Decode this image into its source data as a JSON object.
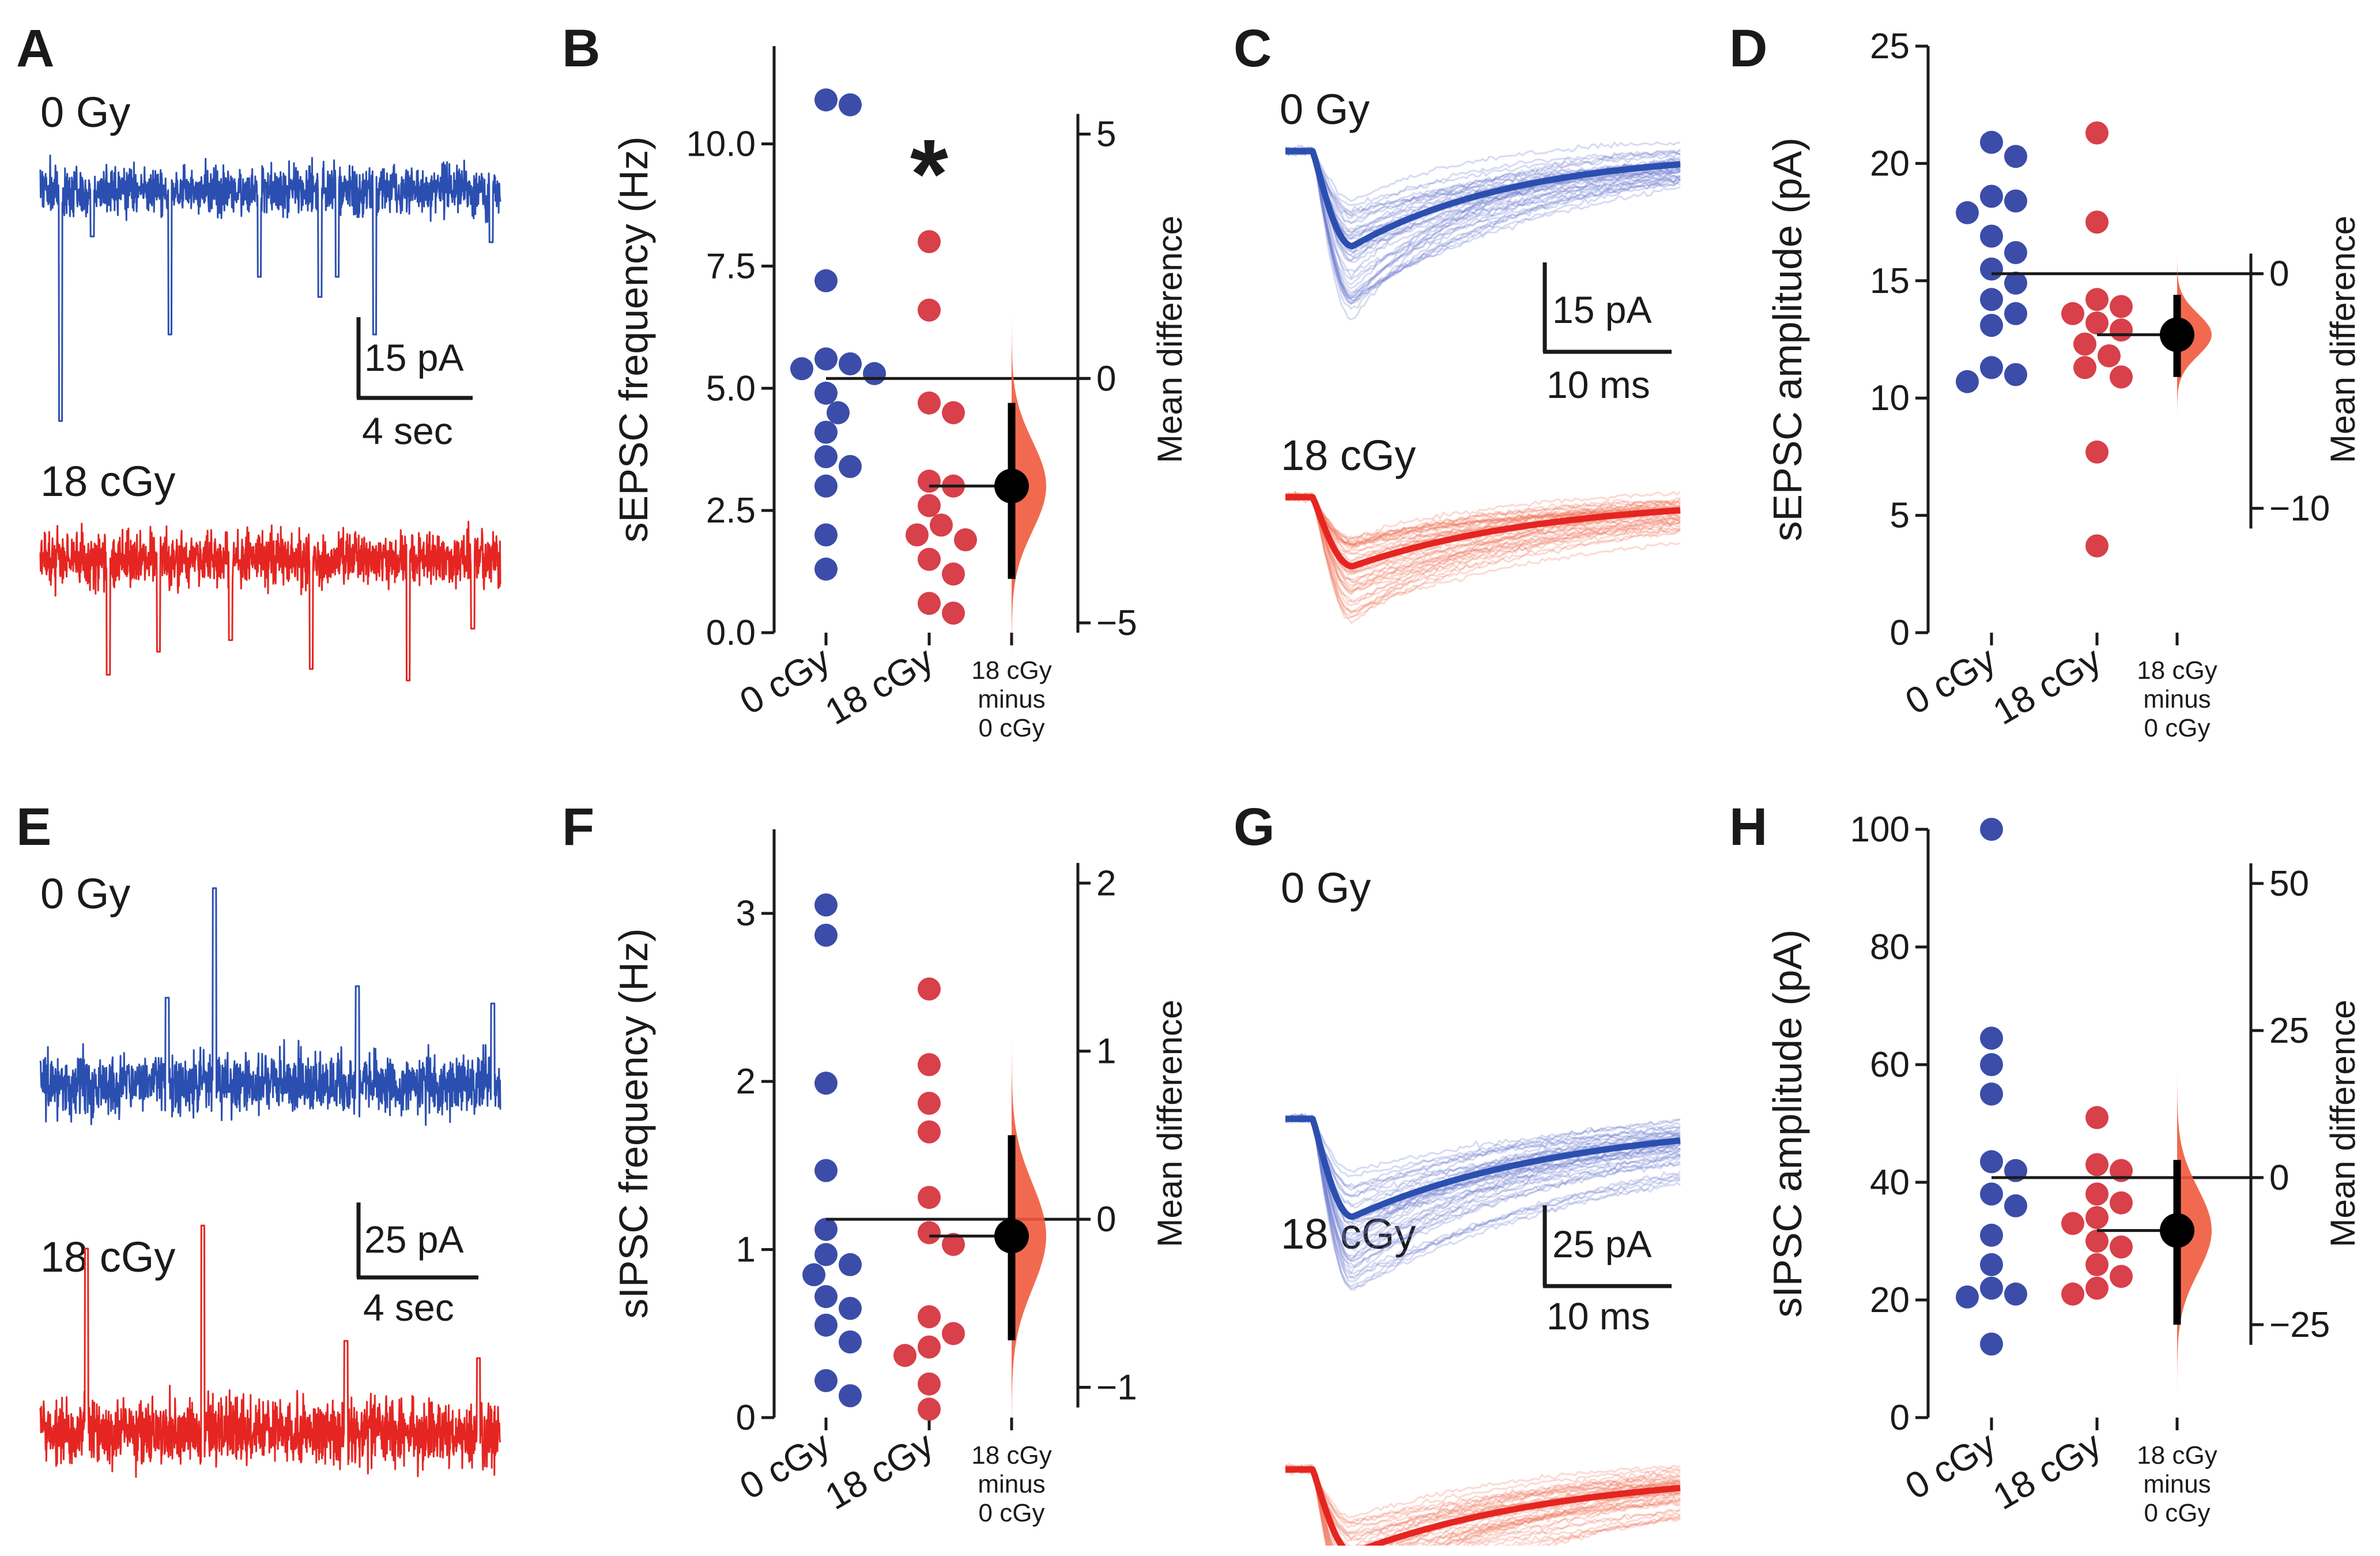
{
  "colors": {
    "control": "#2b4fb0",
    "irradiated": "#e52521",
    "control_dot": "#3b4da8",
    "irradiated_dot": "#d8404a",
    "diff_fill": "#f05a3c",
    "axis": "#1a1a1a"
  },
  "panels": {
    "A": {
      "letter": "A",
      "cond1": "0 Gy",
      "cond2": "18 cGy",
      "scale_y": "15 pA",
      "scale_x": "4 sec"
    },
    "C": {
      "letter": "C",
      "cond1": "0 Gy",
      "cond2": "18 cGy",
      "scale_y": "15 pA",
      "scale_x": "10 ms"
    },
    "E": {
      "letter": "E",
      "cond1": "0 Gy",
      "cond2": "18 cGy",
      "scale_y": "25 pA",
      "scale_x": "4 sec"
    },
    "G": {
      "letter": "G",
      "cond1": "0 Gy",
      "cond2": "18 cGy",
      "scale_y": "25 pA",
      "scale_x": "10 ms"
    }
  },
  "chart_data": [
    {
      "panel": "B",
      "type": "scatter",
      "ylabel": "sEPSC frequency (Hz)",
      "ylim": [
        0,
        12
      ],
      "yticks": [
        "0.0",
        "2.5",
        "5.0",
        "7.5",
        "10.0"
      ],
      "right_label": "Mean difference",
      "right_ticks": [
        "5",
        "0",
        "−5"
      ],
      "right_tick_values": [
        5,
        0,
        -5
      ],
      "categories": [
        "0 cGy",
        "18 cGy"
      ],
      "diff_label": [
        "18 cGy",
        "minus",
        "0 cGy"
      ],
      "annotation": "*",
      "series": [
        {
          "name": "0 cGy",
          "values": [
            10.9,
            10.8,
            7.2,
            5.6,
            5.5,
            5.4,
            5.3,
            4.9,
            4.5,
            4.1,
            3.6,
            3.4,
            3.0,
            2.0,
            1.3
          ]
        },
        {
          "name": "18 cGy",
          "values": [
            8.0,
            6.6,
            4.7,
            4.5,
            3.1,
            3.0,
            2.6,
            2.2,
            2.0,
            1.9,
            1.5,
            1.2,
            0.6,
            0.4
          ]
        }
      ],
      "control_mean": 5.2,
      "diff": {
        "mean": -2.2,
        "ci": [
          -4.1,
          -0.5
        ]
      }
    },
    {
      "panel": "D",
      "type": "scatter",
      "ylabel": "sEPSC amplitude (pA)",
      "ylim": [
        0,
        25
      ],
      "yticks": [
        "0",
        "5",
        "10",
        "15",
        "20",
        "25"
      ],
      "right_label": "Mean difference",
      "right_ticks": [
        "0",
        "−10"
      ],
      "right_tick_values": [
        0,
        -10
      ],
      "categories": [
        "0 cGy",
        "18 cGy"
      ],
      "diff_label": [
        "18 cGy",
        "minus",
        "0 cGy"
      ],
      "series": [
        {
          "name": "0 cGy",
          "values": [
            20.9,
            20.3,
            18.6,
            18.4,
            17.9,
            16.9,
            16.2,
            15.5,
            14.9,
            14.2,
            13.6,
            13.1,
            11.3,
            11.0,
            10.7
          ]
        },
        {
          "name": "18 cGy",
          "values": [
            21.3,
            17.5,
            14.2,
            13.9,
            13.6,
            13.2,
            12.9,
            12.3,
            11.8,
            11.3,
            10.9,
            7.7,
            3.7
          ]
        }
      ],
      "control_mean": 15.3,
      "diff": {
        "mean": -2.6,
        "ci": [
          -4.4,
          -0.9
        ]
      }
    },
    {
      "panel": "F",
      "type": "scatter",
      "ylabel": "sIPSC frequency (Hz)",
      "ylim": [
        0,
        3.5
      ],
      "yticks": [
        "0",
        "1",
        "2",
        "3"
      ],
      "right_label": "Mean difference",
      "right_ticks": [
        "2",
        "1",
        "0",
        "−1"
      ],
      "right_tick_values": [
        2,
        1,
        0,
        -1
      ],
      "categories": [
        "0 cGy",
        "18 cGy"
      ],
      "diff_label": [
        "18 cGy",
        "minus",
        "0 cGy"
      ],
      "series": [
        {
          "name": "0 cGy",
          "values": [
            3.05,
            2.87,
            1.99,
            1.47,
            1.12,
            0.97,
            0.91,
            0.85,
            0.72,
            0.65,
            0.55,
            0.45,
            0.22,
            0.13
          ]
        },
        {
          "name": "18 cGy",
          "values": [
            2.55,
            2.1,
            1.87,
            1.7,
            1.31,
            1.1,
            1.03,
            0.6,
            0.5,
            0.42,
            0.37,
            0.2,
            0.05
          ]
        }
      ],
      "control_mean": 1.18,
      "diff": {
        "mean": -0.1,
        "ci": [
          -0.72,
          0.5
        ]
      }
    },
    {
      "panel": "H",
      "type": "scatter",
      "ylabel": "sIPSC amplitude (pA)",
      "ylim": [
        0,
        100
      ],
      "yticks": [
        "0",
        "20",
        "40",
        "60",
        "80",
        "100"
      ],
      "right_label": "Mean difference",
      "right_ticks": [
        "50",
        "25",
        "0",
        "−25"
      ],
      "right_tick_values": [
        50,
        25,
        0,
        -25
      ],
      "categories": [
        "0 cGy",
        "18 cGy"
      ],
      "diff_label": [
        "18 cGy",
        "minus",
        "0 cGy"
      ],
      "series": [
        {
          "name": "0 cGy",
          "values": [
            100,
            64.5,
            60,
            55,
            43.5,
            42,
            38,
            36,
            31,
            26,
            22,
            21,
            20.5,
            12.5
          ]
        },
        {
          "name": "18 cGy",
          "values": [
            51,
            43,
            42,
            38,
            36.5,
            34,
            33,
            30,
            29,
            26,
            24,
            22,
            21
          ]
        }
      ],
      "control_mean": 40.8,
      "diff": {
        "mean": -9,
        "ci": [
          -25,
          3
        ]
      }
    }
  ]
}
